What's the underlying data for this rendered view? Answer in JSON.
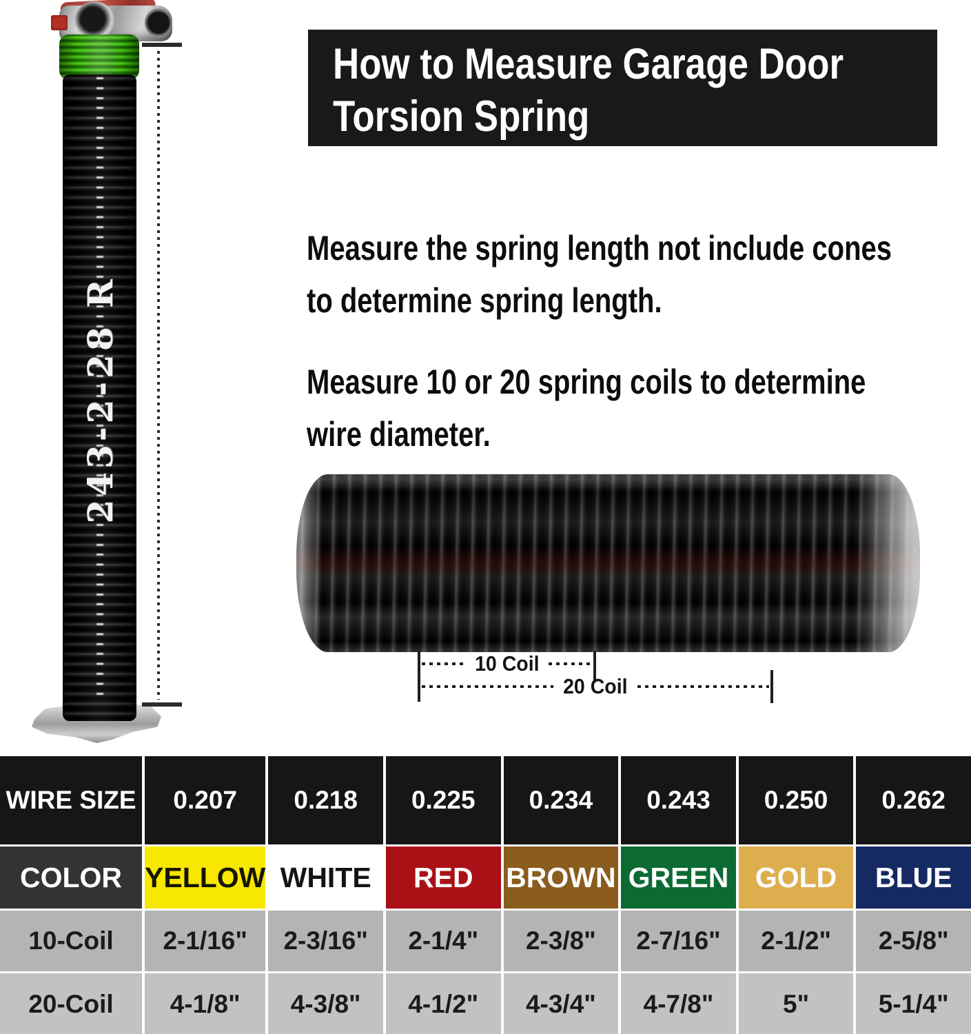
{
  "banner": {
    "line1": "How to Measure Garage Door",
    "line2": "Torsion Spring",
    "bg": "#191919"
  },
  "instructions": {
    "p1_line1": "Measure the spring length not include cones",
    "p1_line2": "to determine spring length.",
    "p2_line1": "Measure 10 or 20 spring coils to determine",
    "p2_line2": "wire diameter."
  },
  "spring": {
    "label": "243-2-28 R",
    "winding_cone_color": "green",
    "coil_color": "black"
  },
  "coil_measure": {
    "label_10": "10 Coil",
    "label_20": "20 Coil"
  },
  "table": {
    "row_labels": {
      "wire_size": "WIRE SIZE",
      "color": "COLOR",
      "coil10": "10-Coil",
      "coil20": "20-Coil"
    },
    "wire_sizes": [
      "0.207",
      "0.218",
      "0.225",
      "0.234",
      "0.243",
      "0.250",
      "0.262"
    ],
    "colors": [
      {
        "name": "YELLOW",
        "hex": "#f8e700",
        "style": "background:#f8e700;color:#161600"
      },
      {
        "name": "WHITE",
        "hex": "#ffffff",
        "style": "background:#ffffff;color:#141414"
      },
      {
        "name": "RED",
        "hex": "#a91117",
        "style": "background:#a91117;color:#ffffff"
      },
      {
        "name": "BROWN",
        "hex": "#8a5c1e",
        "style": "background:#8a5c1e;color:#ffffff"
      },
      {
        "name": "GREEN",
        "hex": "#0c6a33",
        "style": "background:#0c6a33;color:#ffffff"
      },
      {
        "name": "GOLD",
        "hex": "#ddae4d",
        "style": "background:#ddae4d;color:#ffffff"
      },
      {
        "name": "BLUE",
        "hex": "#152a63",
        "style": "background:#152a63;color:#ffffff"
      }
    ],
    "coil10_values": [
      "2-1/16\"",
      "2-3/16\"",
      "2-1/4\"",
      "2-3/8\"",
      "2-7/16\"",
      "2-1/2\"",
      "2-5/8\""
    ],
    "coil20_values": [
      "4-1/8\"",
      "4-3/8\"",
      "4-1/2\"",
      "4-3/4\"",
      "4-7/8\"",
      "5\"",
      "5-1/4\""
    ]
  }
}
